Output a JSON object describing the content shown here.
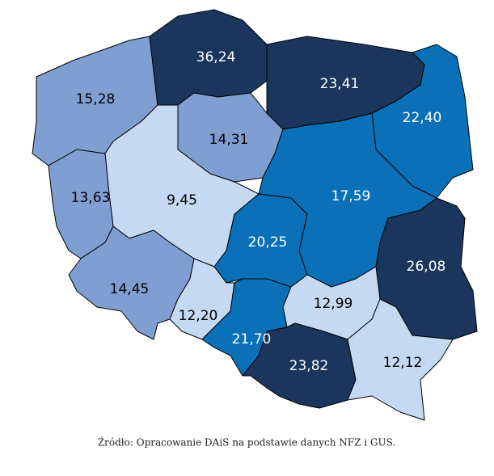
{
  "chart_data": {
    "type": "choropleth",
    "values": [
      15.28,
      36.24,
      23.41,
      22.4,
      14.31,
      9.45,
      13.63,
      14.45,
      17.59,
      20.25,
      26.08,
      12.2,
      21.7,
      12.99,
      23.82,
      12.12
    ],
    "value_labels": [
      "15,28",
      "36,24",
      "23,41",
      "22,40",
      "14,31",
      "9,45",
      "13,63",
      "14,45",
      "17,59",
      "20,25",
      "26,08",
      "12,20",
      "21,70",
      "12,99",
      "23,82",
      "12,12"
    ],
    "colors": [
      "#7f9fd3",
      "#1a365d",
      "#1a365d",
      "#0a70b8",
      "#7f9fd3",
      "#c6d9f3",
      "#7f9fd3",
      "#7f9fd3",
      "#0a70b8",
      "#0a70b8",
      "#1a365d",
      "#c6d9f3",
      "#0a70b8",
      "#c6d9f3",
      "#1a365d",
      "#c6d9f3"
    ]
  },
  "source": "Źródło: Opracowanie DAiS na podstawie danych NFZ i GUS."
}
